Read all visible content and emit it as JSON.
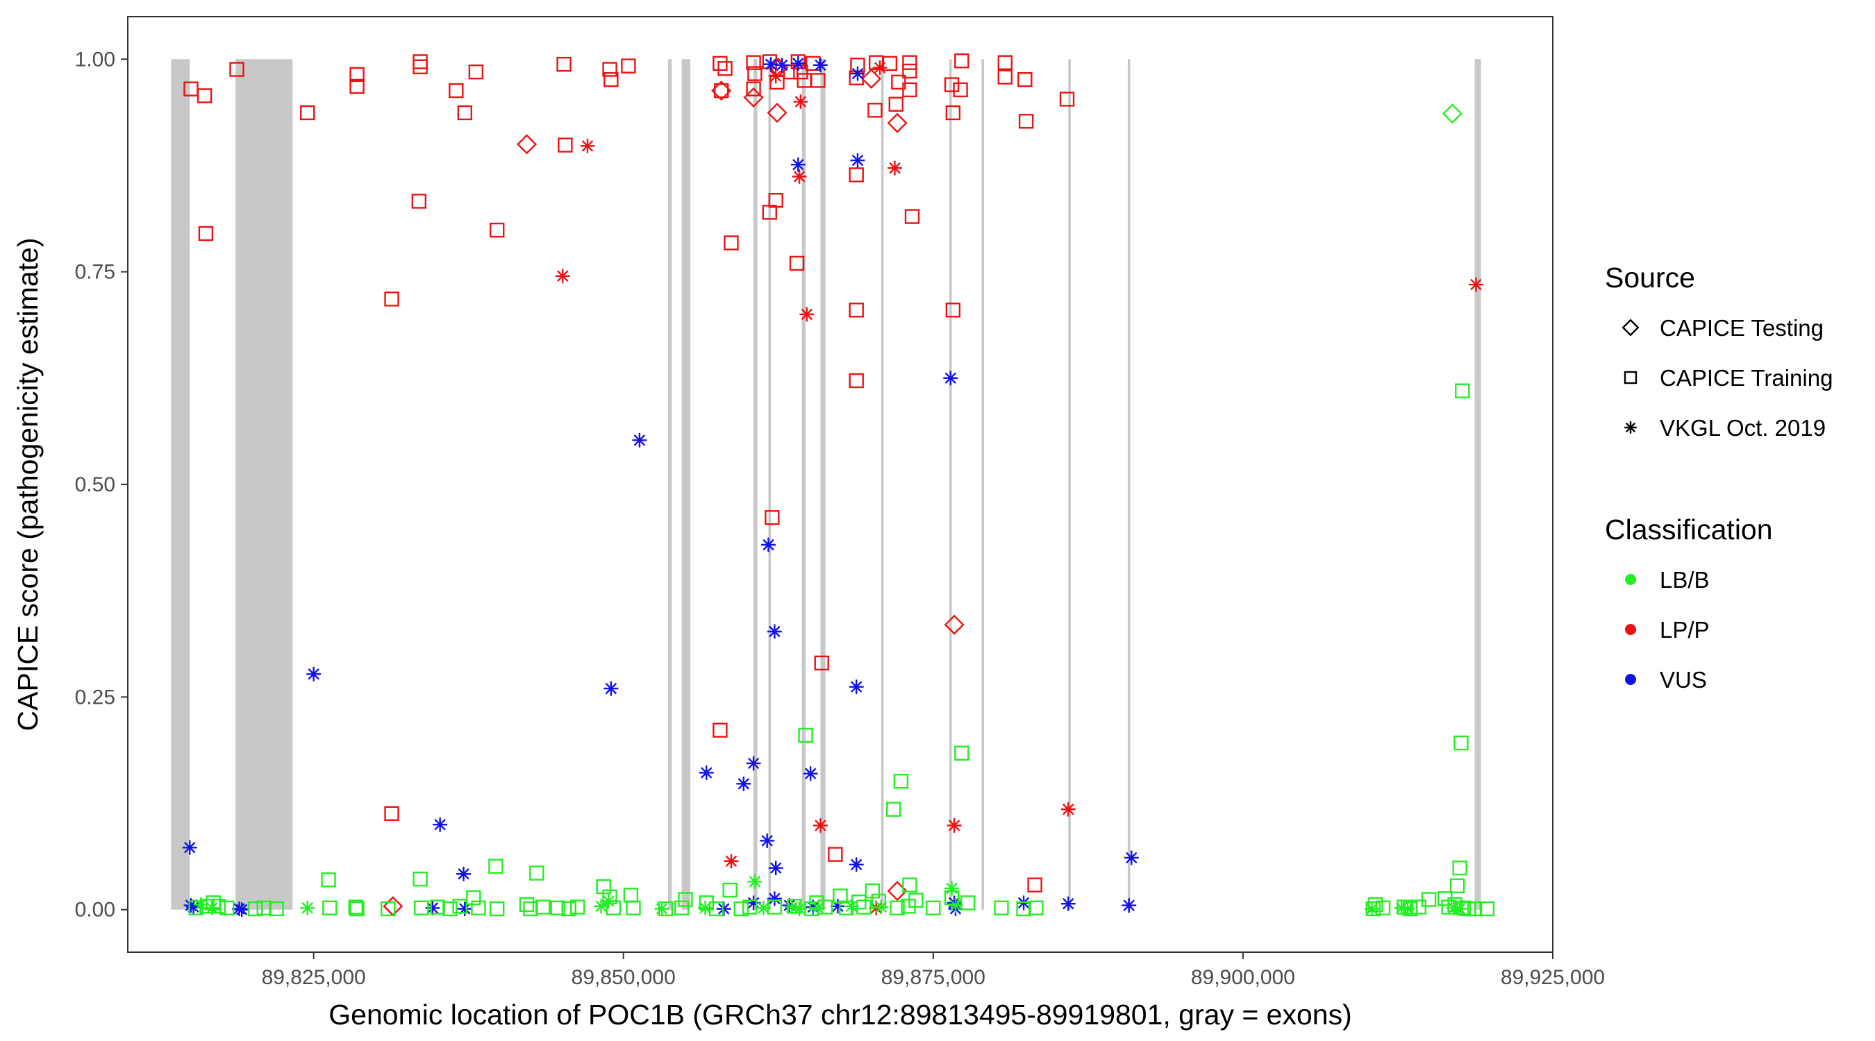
{
  "chart_data": {
    "type": "scatter",
    "title": "",
    "xlabel": "Genomic location of POC1B (GRCh37 chr12:89813495-89919801, gray = exons)",
    "ylabel": "CAPICE score (pathogenicity estimate)",
    "xlim": [
      89810000,
      89925000
    ],
    "ylim": [
      -0.05,
      1.05
    ],
    "x_ticks": [
      89825000,
      89850000,
      89875000,
      89900000,
      89925000
    ],
    "x_tick_labels": [
      "89,825,000",
      "89,850,000",
      "89,875,000",
      "89,900,000",
      "89,925,000"
    ],
    "y_ticks": [
      0,
      0.25,
      0.5,
      0.75,
      1.0
    ],
    "y_tick_labels": [
      "0.00",
      "0.25",
      "0.50",
      "0.75",
      "1.00"
    ],
    "grid": false,
    "legend_position": "right",
    "exon_band_color": "#c8c8c8",
    "exons": [
      [
        89813495,
        89815000
      ],
      [
        89818700,
        89823300
      ],
      [
        89853600,
        89853900
      ],
      [
        89854700,
        89855400
      ],
      [
        89860500,
        89860800
      ],
      [
        89861700,
        89861900
      ],
      [
        89864400,
        89864700
      ],
      [
        89865900,
        89866300
      ],
      [
        89870800,
        89871000
      ],
      [
        89876300,
        89876500
      ],
      [
        89878900,
        89879100
      ],
      [
        89885900,
        89886100
      ],
      [
        89890700,
        89890900
      ],
      [
        89918700,
        89919200
      ]
    ],
    "legend": {
      "source_title": "Source",
      "source_items": [
        {
          "label": "CAPICE Testing",
          "shape": "diamond"
        },
        {
          "label": "CAPICE Training",
          "shape": "square"
        },
        {
          "label": "VKGL Oct. 2019",
          "shape": "asterisk"
        }
      ],
      "class_title": "Classification",
      "class_items": [
        {
          "label": "LB/B",
          "color": "#22ee22"
        },
        {
          "label": "LP/P",
          "color": "#ee1111"
        },
        {
          "label": "VUS",
          "color": "#1111ee"
        }
      ]
    },
    "colors": {
      "LB/B": "#22ee22",
      "LP/P": "#ee1111",
      "VUS": "#1111ee"
    },
    "series": [
      {
        "name": "CAPICE Training LP/P",
        "shape": "square",
        "class": "LP/P",
        "points": [
          [
            89815100,
            0.965
          ],
          [
            89816200,
            0.957
          ],
          [
            89816300,
            0.795
          ],
          [
            89818800,
            0.988
          ],
          [
            89824500,
            0.937
          ],
          [
            89828500,
            0.982
          ],
          [
            89828500,
            0.968
          ],
          [
            89831300,
            0.718
          ],
          [
            89831300,
            0.113
          ],
          [
            89833600,
            0.997
          ],
          [
            89833600,
            0.991
          ],
          [
            89833500,
            0.833
          ],
          [
            89836500,
            0.963
          ],
          [
            89837200,
            0.937
          ],
          [
            89838100,
            0.985
          ],
          [
            89839800,
            0.799
          ],
          [
            89845200,
            0.994
          ],
          [
            89845300,
            0.899
          ],
          [
            89848900,
            0.988
          ],
          [
            89849000,
            0.976
          ],
          [
            89850400,
            0.992
          ],
          [
            89857800,
            0.995
          ],
          [
            89857900,
            0.963
          ],
          [
            89858200,
            0.989
          ],
          [
            89858700,
            0.784
          ],
          [
            89860500,
            0.996
          ],
          [
            89860600,
            0.983
          ],
          [
            89860500,
            0.965
          ],
          [
            89861800,
            0.997
          ],
          [
            89861800,
            0.82
          ],
          [
            89862300,
            0.834
          ],
          [
            89862400,
            0.973
          ],
          [
            89863500,
            0.985
          ],
          [
            89864000,
            0.76
          ],
          [
            89864100,
            0.997
          ],
          [
            89864300,
            0.985
          ],
          [
            89864600,
            0.975
          ],
          [
            89865300,
            0.995
          ],
          [
            89865700,
            0.975
          ],
          [
            89866000,
            0.29
          ],
          [
            89857800,
            0.211
          ],
          [
            89862000,
            0.461
          ],
          [
            89867100,
            0.065
          ],
          [
            89868800,
            0.705
          ],
          [
            89868800,
            0.622
          ],
          [
            89868800,
            0.864
          ],
          [
            89868800,
            0.978
          ],
          [
            89868900,
            0.993
          ],
          [
            89870300,
            0.94
          ],
          [
            89870400,
            0.996
          ],
          [
            89871500,
            0.995
          ],
          [
            89872000,
            0.947
          ],
          [
            89872200,
            0.973
          ],
          [
            89873100,
            0.996
          ],
          [
            89873100,
            0.986
          ],
          [
            89873100,
            0.964
          ],
          [
            89873300,
            0.815
          ],
          [
            89876500,
            0.97
          ],
          [
            89876600,
            0.937
          ],
          [
            89876600,
            0.705
          ],
          [
            89877200,
            0.964
          ],
          [
            89877300,
            0.998
          ],
          [
            89880800,
            0.996
          ],
          [
            89880800,
            0.979
          ],
          [
            89882400,
            0.976
          ],
          [
            89882500,
            0.927
          ],
          [
            89883200,
            0.029
          ],
          [
            89885800,
            0.953
          ]
        ]
      },
      {
        "name": "CAPICE Testing LP/P",
        "shape": "diamond",
        "class": "LP/P",
        "points": [
          [
            89831400,
            0.004
          ],
          [
            89842200,
            0.9
          ],
          [
            89857900,
            0.963
          ],
          [
            89860500,
            0.955
          ],
          [
            89862400,
            0.937
          ],
          [
            89862500,
            0.99
          ],
          [
            89870000,
            0.977
          ],
          [
            89872100,
            0.925
          ],
          [
            89872100,
            0.022
          ],
          [
            89876700,
            0.335
          ]
        ]
      },
      {
        "name": "VKGL LP/P",
        "shape": "asterisk",
        "class": "LP/P",
        "points": [
          [
            89845100,
            0.745
          ],
          [
            89847100,
            0.898
          ],
          [
            89858700,
            0.057
          ],
          [
            89862300,
            0.98
          ],
          [
            89864200,
            0.862
          ],
          [
            89864300,
            0.95
          ],
          [
            89864800,
            0.7
          ],
          [
            89865900,
            0.099
          ],
          [
            89870400,
            0.002
          ],
          [
            89870700,
            0.99
          ],
          [
            89871900,
            0.872
          ],
          [
            89876700,
            0.099
          ],
          [
            89885900,
            0.118
          ],
          [
            89918800,
            0.735
          ]
        ]
      },
      {
        "name": "VKGL VUS",
        "shape": "asterisk",
        "class": "VUS",
        "points": [
          [
            89815000,
            0.073
          ],
          [
            89815100,
            0.005
          ],
          [
            89815300,
            0.003
          ],
          [
            89819000,
            0.001
          ],
          [
            89819200,
            0.0
          ],
          [
            89825000,
            0.277
          ],
          [
            89834600,
            0.002
          ],
          [
            89835200,
            0.1
          ],
          [
            89837100,
            0.042
          ],
          [
            89837200,
            0.001
          ],
          [
            89849000,
            0.26
          ],
          [
            89851300,
            0.552
          ],
          [
            89856700,
            0.161
          ],
          [
            89858100,
            0.001
          ],
          [
            89859700,
            0.148
          ],
          [
            89860500,
            0.172
          ],
          [
            89860500,
            0.008
          ],
          [
            89861600,
            0.081
          ],
          [
            89861700,
            0.429
          ],
          [
            89861900,
            0.994
          ],
          [
            89862200,
            0.327
          ],
          [
            89862300,
            0.049
          ],
          [
            89862200,
            0.013
          ],
          [
            89862800,
            0.993
          ],
          [
            89863400,
            0.005
          ],
          [
            89864100,
            0.876
          ],
          [
            89864100,
            0.995
          ],
          [
            89865100,
            0.16
          ],
          [
            89865300,
            0.003
          ],
          [
            89865900,
            0.993
          ],
          [
            89867300,
            0.004
          ],
          [
            89868800,
            0.262
          ],
          [
            89868800,
            0.053
          ],
          [
            89868900,
            0.881
          ],
          [
            89868900,
            0.983
          ],
          [
            89876400,
            0.625
          ],
          [
            89876700,
            0.008
          ],
          [
            89876800,
            0.001
          ],
          [
            89882300,
            0.008
          ],
          [
            89885900,
            0.007
          ],
          [
            89890800,
            0.005
          ],
          [
            89891000,
            0.061
          ]
        ]
      },
      {
        "name": "CAPICE Testing LB/B",
        "shape": "diamond",
        "class": "LB/B",
        "points": [
          [
            89916900,
            0.936
          ]
        ]
      },
      {
        "name": "CAPICE Training LB/B",
        "shape": "square",
        "class": "LB/B",
        "points": [
          [
            89815500,
            0.002
          ],
          [
            89816400,
            0.004
          ],
          [
            89816900,
            0.008
          ],
          [
            89817300,
            0.004
          ],
          [
            89818000,
            0.002
          ],
          [
            89820300,
            0.001
          ],
          [
            89821000,
            0.002
          ],
          [
            89822000,
            0.001
          ],
          [
            89826200,
            0.035
          ],
          [
            89826300,
            0.002
          ],
          [
            89828400,
            0.003
          ],
          [
            89828500,
            0.001
          ],
          [
            89831000,
            0.001
          ],
          [
            89833600,
            0.036
          ],
          [
            89833700,
            0.002
          ],
          [
            89835000,
            0.003
          ],
          [
            89836000,
            0.001
          ],
          [
            89836800,
            0.004
          ],
          [
            89837900,
            0.014
          ],
          [
            89838300,
            0.002
          ],
          [
            89839700,
            0.051
          ],
          [
            89839800,
            0.001
          ],
          [
            89842200,
            0.006
          ],
          [
            89842500,
            0.001
          ],
          [
            89843000,
            0.043
          ],
          [
            89843500,
            0.003
          ],
          [
            89844700,
            0.002
          ],
          [
            89845600,
            0.001
          ],
          [
            89846300,
            0.003
          ],
          [
            89848400,
            0.027
          ],
          [
            89848900,
            0.015
          ],
          [
            89849200,
            0.002
          ],
          [
            89850600,
            0.017
          ],
          [
            89850800,
            0.002
          ],
          [
            89853400,
            0.001
          ],
          [
            89854700,
            0.002
          ],
          [
            89855000,
            0.012
          ],
          [
            89856700,
            0.008
          ],
          [
            89857500,
            0.001
          ],
          [
            89858600,
            0.023
          ],
          [
            89859500,
            0.001
          ],
          [
            89860200,
            0.003
          ],
          [
            89862200,
            0.003
          ],
          [
            89863800,
            0.004
          ],
          [
            89864700,
            0.205
          ],
          [
            89865200,
            0.001
          ],
          [
            89865600,
            0.008
          ],
          [
            89866300,
            0.003
          ],
          [
            89867500,
            0.016
          ],
          [
            89868000,
            0.002
          ],
          [
            89869000,
            0.009
          ],
          [
            89869400,
            0.003
          ],
          [
            89870100,
            0.022
          ],
          [
            89870600,
            0.01
          ],
          [
            89871800,
            0.118
          ],
          [
            89872100,
            0.002
          ],
          [
            89872400,
            0.151
          ],
          [
            89873000,
            0.004
          ],
          [
            89873100,
            0.029
          ],
          [
            89873600,
            0.011
          ],
          [
            89875000,
            0.002
          ],
          [
            89876500,
            0.014
          ],
          [
            89877300,
            0.184
          ],
          [
            89877800,
            0.008
          ],
          [
            89880500,
            0.002
          ],
          [
            89882300,
            0.001
          ],
          [
            89883300,
            0.002
          ],
          [
            89910500,
            0.001
          ],
          [
            89910700,
            0.006
          ],
          [
            89911300,
            0.002
          ],
          [
            89913000,
            0.003
          ],
          [
            89913500,
            0.001
          ],
          [
            89914200,
            0.003
          ],
          [
            89915000,
            0.012
          ],
          [
            89916300,
            0.013
          ],
          [
            89916600,
            0.003
          ],
          [
            89917100,
            0.006
          ],
          [
            89917300,
            0.028
          ],
          [
            89917500,
            0.049
          ],
          [
            89917600,
            0.196
          ],
          [
            89917700,
            0.61
          ],
          [
            89917800,
            0.002
          ],
          [
            89918200,
            0.001
          ],
          [
            89918700,
            0.001
          ],
          [
            89919700,
            0.001
          ]
        ]
      },
      {
        "name": "VKGL LB/B",
        "shape": "asterisk",
        "class": "LB/B",
        "points": [
          [
            89815900,
            0.006
          ],
          [
            89816800,
            0.002
          ],
          [
            89824500,
            0.002
          ],
          [
            89848200,
            0.004
          ],
          [
            89848800,
            0.01
          ],
          [
            89853100,
            0.001
          ],
          [
            89856600,
            0.002
          ],
          [
            89860600,
            0.033
          ],
          [
            89861300,
            0.002
          ],
          [
            89863600,
            0.003
          ],
          [
            89864200,
            0.001
          ],
          [
            89865700,
            0.002
          ],
          [
            89868400,
            0.004
          ],
          [
            89870800,
            0.003
          ],
          [
            89876500,
            0.025
          ],
          [
            89876800,
            0.005
          ],
          [
            89910400,
            0.001
          ],
          [
            89912800,
            0.002
          ],
          [
            89913300,
            0.001
          ],
          [
            89917000,
            0.002
          ],
          [
            89917500,
            0.001
          ]
        ]
      }
    ]
  }
}
